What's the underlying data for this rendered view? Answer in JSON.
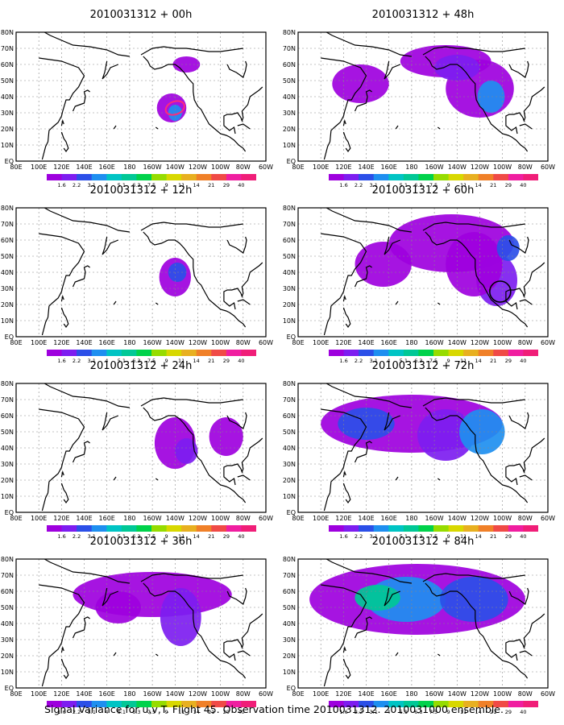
{
  "panels": [
    {
      "title": "2010031312 + 00h"
    },
    {
      "title": "2010031312 + 48h"
    },
    {
      "title": "2010031312 + 12h"
    },
    {
      "title": "2010031312 + 60h"
    },
    {
      "title": "2010031312 + 24h"
    },
    {
      "title": "2010031312 + 72h"
    },
    {
      "title": "2010031312 + 36h"
    },
    {
      "title": "2010031312 + 84h"
    }
  ],
  "lon_labels": [
    "80E",
    "100E",
    "120E",
    "140E",
    "160E",
    "180",
    "160W",
    "140W",
    "120W",
    "100W",
    "80W",
    "60W"
  ],
  "lat_labels": [
    "EQ",
    "10N",
    "20N",
    "30N",
    "40N",
    "50N",
    "60N",
    "70N",
    "80N"
  ],
  "colorbar": {
    "labels": [
      "1.6",
      "2.2",
      "3.1",
      "4",
      "5.1",
      "6.3",
      "7.5",
      "9",
      "11",
      "14",
      "21",
      "29",
      "40"
    ],
    "colors": [
      "#9e00de",
      "#7d1df0",
      "#2b4fe8",
      "#1e8ff0",
      "#00c4c4",
      "#00c896",
      "#00d24b",
      "#96dc00",
      "#d8d800",
      "#e8b020",
      "#f08028",
      "#f04a46",
      "#f01ea0"
    ]
  },
  "footer": "Signal Variance for u,v,T. Flight 45. Observation time 2010031312. 2010031000 ensemble.",
  "annotations": [
    {
      "panel": 0,
      "shape": "ellipse",
      "color": "#ff2a7a",
      "lon": -140,
      "lat": 33
    },
    {
      "panel": 3,
      "shape": "circle",
      "color": "#000000",
      "lon": -102,
      "lat": 28
    }
  ]
}
